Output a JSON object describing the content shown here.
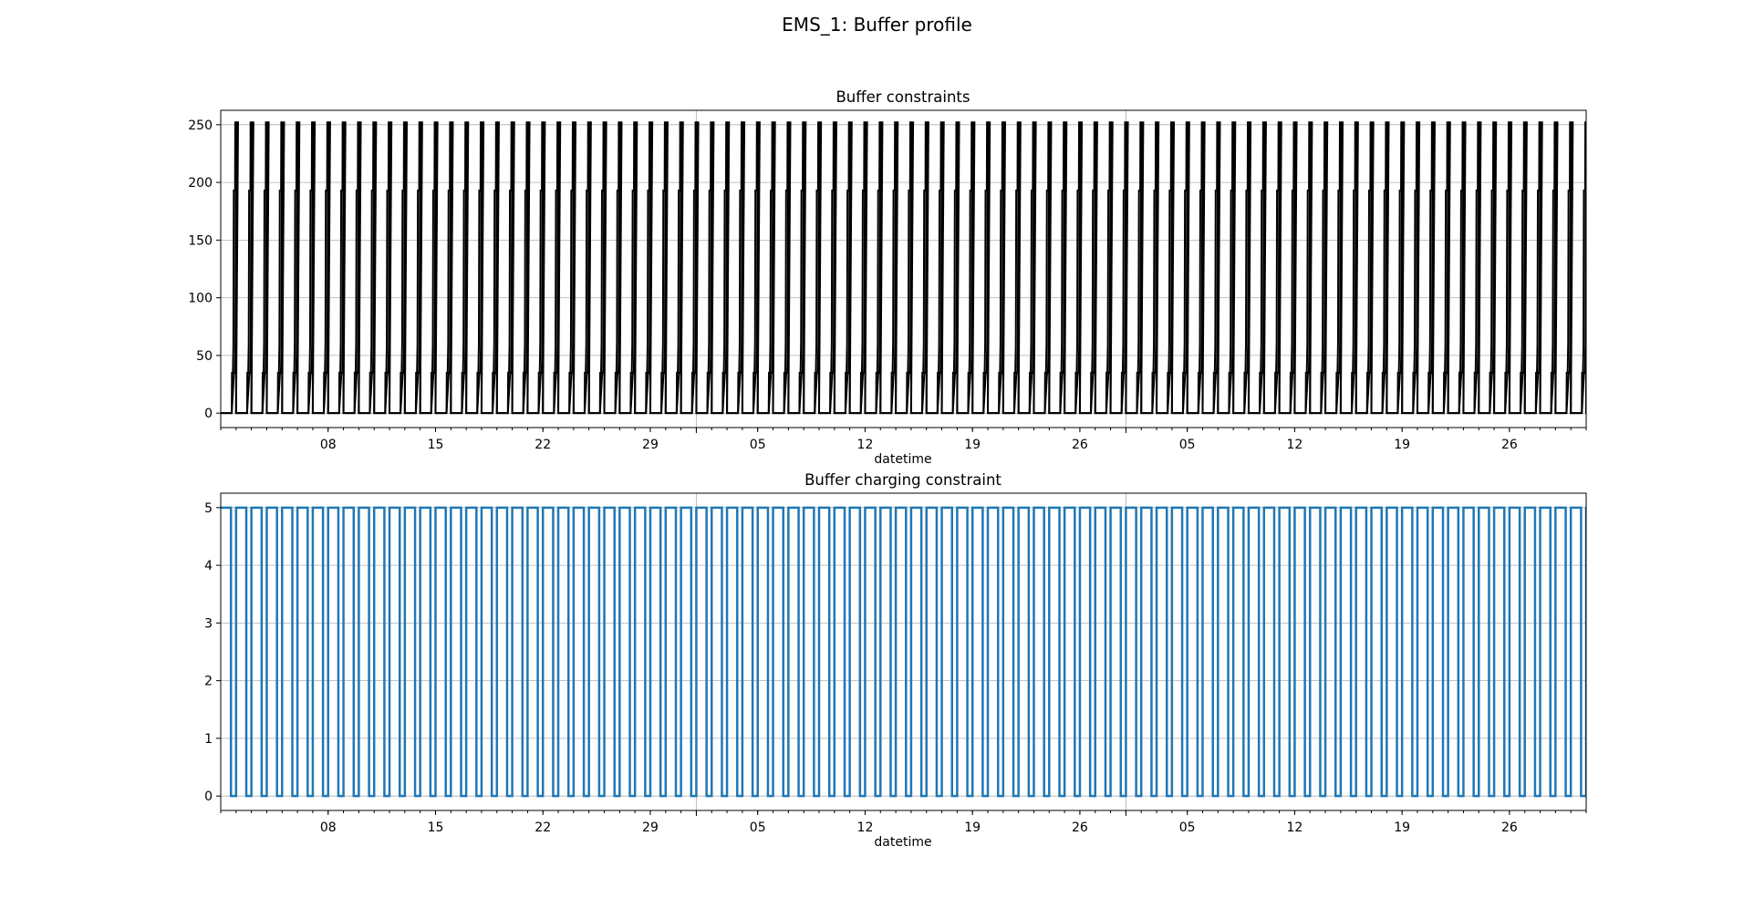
{
  "figure": {
    "suptitle": "EMS_1: Buffer profile"
  },
  "chart_data": [
    {
      "type": "line",
      "title": "Buffer constraints",
      "xlabel": "datetime",
      "ylabel": "",
      "x_range": [
        "2023-01-01",
        "2023-03-31"
      ],
      "x_ticks": [
        {
          "date": "2023-01-08",
          "label": "08"
        },
        {
          "date": "2023-01-15",
          "label": "15"
        },
        {
          "date": "2023-01-22",
          "label": "22"
        },
        {
          "date": "2023-01-29",
          "label": "29"
        },
        {
          "date": "2023-02-05",
          "label": "05"
        },
        {
          "date": "2023-02-12",
          "label": "12"
        },
        {
          "date": "2023-02-19",
          "label": "19"
        },
        {
          "date": "2023-02-26",
          "label": "26"
        },
        {
          "date": "2023-03-05",
          "label": "05"
        },
        {
          "date": "2023-03-12",
          "label": "12"
        },
        {
          "date": "2023-03-19",
          "label": "19"
        },
        {
          "date": "2023-03-26",
          "label": "26"
        }
      ],
      "x_major_gridlines": [
        "2023-02-01",
        "2023-03-01"
      ],
      "yticks": [
        0,
        50,
        100,
        150,
        200,
        250
      ],
      "ylim": [
        -12.5,
        262.5
      ],
      "grid": true,
      "line_color": "#000000",
      "daily_cycle": {
        "series": [
          {
            "values_by_hour": [
              0,
              0,
              0,
              0,
              0,
              0,
              0,
              0,
              0,
              0,
              0,
              0,
              0,
              0,
              0,
              0,
              0,
              0,
              0,
              0,
              0,
              0,
              0,
              0
            ]
          },
          {
            "values_by_hour": [
              0,
              0,
              0,
              0,
              0,
              0,
              0,
              0,
              0,
              0,
              0,
              0,
              0,
              0,
              0,
              0,
              0,
              0,
              35,
              35,
              35,
              35,
              193,
              193
            ]
          },
          {
            "values_by_hour": [
              0,
              0,
              0,
              0,
              0,
              0,
              0,
              0,
              0,
              0,
              0,
              0,
              0,
              0,
              0,
              0,
              0,
              0,
              0,
              0,
              0,
              0,
              0,
              0
            ]
          },
          {
            "values_by_hour": [
              0,
              0,
              0,
              0,
              0,
              0,
              0,
              0,
              0,
              0,
              0,
              0,
              0,
              0,
              0,
              0,
              0,
              0,
              0,
              0,
              0,
              0,
              0,
              0
            ]
          },
          {
            "values_by_hour": [
              0,
              0,
              0,
              0,
              0,
              0,
              0,
              0,
              0,
              0,
              0,
              0,
              0,
              0,
              0,
              0,
              0,
              0,
              0,
              0,
              0,
              0,
              0,
              0
            ]
          },
          {
            "values_by_hour": [
              0,
              0,
              0,
              0,
              0,
              0,
              0,
              0,
              0,
              0,
              0,
              0,
              0,
              0,
              0,
              0,
              0,
              0,
              0,
              0,
              0,
              0,
              0,
              0
            ]
          }
        ]
      }
    },
    {
      "type": "bar",
      "title": "Buffer charging constraint",
      "xlabel": "datetime",
      "ylabel": "",
      "x_range": [
        "2023-01-01",
        "2023-03-31"
      ],
      "x_ticks": [
        {
          "date": "2023-01-08",
          "label": "08"
        },
        {
          "date": "2023-01-15",
          "label": "15"
        },
        {
          "date": "2023-01-22",
          "label": "22"
        },
        {
          "date": "2023-01-29",
          "label": "29"
        },
        {
          "date": "2023-02-05",
          "label": "05"
        },
        {
          "date": "2023-02-12",
          "label": "12"
        },
        {
          "date": "2023-02-19",
          "label": "19"
        },
        {
          "date": "2023-02-26",
          "label": "26"
        },
        {
          "date": "2023-03-05",
          "label": "05"
        },
        {
          "date": "2023-03-12",
          "label": "12"
        },
        {
          "date": "2023-03-19",
          "label": "19"
        },
        {
          "date": "2023-03-26",
          "label": "26"
        }
      ],
      "x_major_gridlines": [
        "2023-02-01",
        "2023-03-01"
      ],
      "yticks": [
        0,
        1,
        2,
        3,
        4,
        5
      ],
      "ylim": [
        -0.25,
        5.25
      ],
      "grid": true,
      "line_color": "#1f77b4",
      "daily_cycle": {
        "values_by_hour": [
          5,
          5,
          5,
          5,
          5,
          5,
          5,
          5,
          5,
          5,
          5,
          5,
          5,
          5,
          5,
          5,
          0,
          0,
          0,
          0,
          0,
          0,
          0,
          0
        ]
      }
    }
  ]
}
